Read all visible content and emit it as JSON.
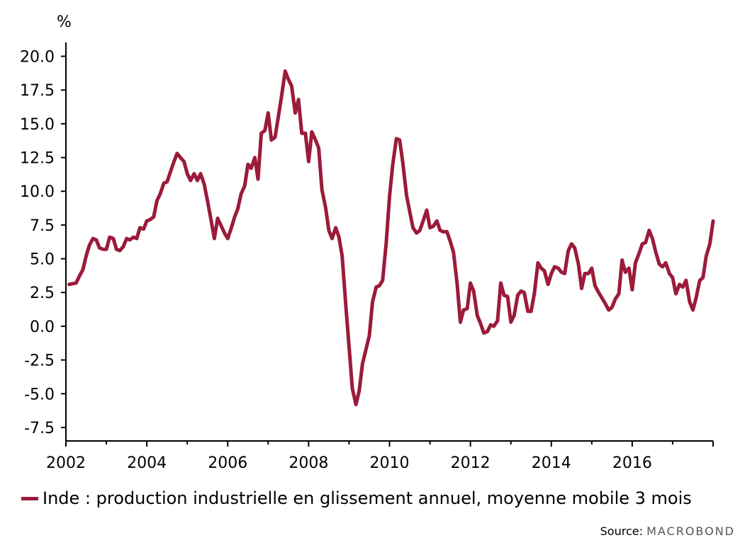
{
  "unit": "%",
  "legend_label": "Inde : production industrielle en glissement annuel, moyenne mobile 3 mois",
  "source_label": "Source:",
  "source_brand": "MACROBOND",
  "colors": {
    "series": "#9b1b3a",
    "axis": "#000000"
  },
  "chart_data": {
    "type": "line",
    "title": "",
    "xlabel": "",
    "ylabel": "%",
    "x_ticks": [
      "2002",
      "2004",
      "2006",
      "2008",
      "2010",
      "2012",
      "2014",
      "2016"
    ],
    "y_ticks": [
      "20.0",
      "17.5",
      "15.0",
      "12.5",
      "10.0",
      "7.5",
      "5.0",
      "2.5",
      "0.0",
      "-2.5",
      "-5.0",
      "-7.5"
    ],
    "xlim": [
      2002.0,
      2018.0
    ],
    "ylim": [
      -8.5,
      20.5
    ],
    "grid": false,
    "legend_position": "bottom",
    "series": [
      {
        "name": "Inde : production industrielle en glissement annuel, moyenne mobile 3 mois",
        "x": [
          2002.08,
          2002.25,
          2002.33,
          2002.42,
          2002.5,
          2002.58,
          2002.67,
          2002.75,
          2002.83,
          2002.92,
          2003.0,
          2003.08,
          2003.17,
          2003.25,
          2003.33,
          2003.42,
          2003.5,
          2003.58,
          2003.67,
          2003.75,
          2003.83,
          2003.92,
          2004.0,
          2004.08,
          2004.17,
          2004.25,
          2004.33,
          2004.42,
          2004.5,
          2004.58,
          2004.67,
          2004.75,
          2004.83,
          2004.92,
          2005.0,
          2005.08,
          2005.17,
          2005.25,
          2005.33,
          2005.42,
          2005.5,
          2005.58,
          2005.67,
          2005.75,
          2005.83,
          2005.92,
          2006.0,
          2006.08,
          2006.17,
          2006.25,
          2006.33,
          2006.42,
          2006.5,
          2006.58,
          2006.67,
          2006.75,
          2006.83,
          2006.92,
          2007.0,
          2007.08,
          2007.17,
          2007.25,
          2007.33,
          2007.42,
          2007.5,
          2007.58,
          2007.67,
          2007.75,
          2007.83,
          2007.92,
          2008.0,
          2008.08,
          2008.17,
          2008.25,
          2008.33,
          2008.42,
          2008.5,
          2008.58,
          2008.67,
          2008.75,
          2008.83,
          2008.92,
          2009.0,
          2009.08,
          2009.17,
          2009.25,
          2009.33,
          2009.42,
          2009.5,
          2009.58,
          2009.67,
          2009.75,
          2009.83,
          2009.92,
          2010.0,
          2010.08,
          2010.17,
          2010.25,
          2010.33,
          2010.42,
          2010.5,
          2010.58,
          2010.67,
          2010.75,
          2010.83,
          2010.92,
          2011.0,
          2011.08,
          2011.17,
          2011.25,
          2011.33,
          2011.42,
          2011.5,
          2011.58,
          2011.67,
          2011.75,
          2011.83,
          2011.92,
          2012.0,
          2012.08,
          2012.17,
          2012.25,
          2012.33,
          2012.42,
          2012.5,
          2012.58,
          2012.67,
          2012.75,
          2012.83,
          2012.92,
          2013.0,
          2013.08,
          2013.17,
          2013.25,
          2013.33,
          2013.42,
          2013.5,
          2013.58,
          2013.67,
          2013.75,
          2013.83,
          2013.92,
          2014.0,
          2014.08,
          2014.17,
          2014.25,
          2014.33,
          2014.42,
          2014.5,
          2014.58,
          2014.67,
          2014.75,
          2014.83,
          2014.92,
          2015.0,
          2015.08,
          2015.17,
          2015.25,
          2015.33,
          2015.42,
          2015.5,
          2015.58,
          2015.67,
          2015.75,
          2015.83,
          2015.92,
          2016.0,
          2016.08,
          2016.17,
          2016.25,
          2016.33,
          2016.42,
          2016.5,
          2016.58,
          2016.67,
          2016.75,
          2016.83,
          2016.92,
          2017.0,
          2017.08,
          2017.17,
          2017.25,
          2017.33,
          2017.42,
          2017.5,
          2017.58,
          2017.67,
          2017.75,
          2017.83,
          2017.92,
          2018.0
        ],
        "values": [
          3.1,
          3.2,
          3.7,
          4.2,
          5.2,
          6.0,
          6.5,
          6.4,
          5.8,
          5.7,
          5.7,
          6.6,
          6.5,
          5.7,
          5.6,
          5.9,
          6.5,
          6.4,
          6.6,
          6.5,
          7.3,
          7.2,
          7.8,
          7.9,
          8.1,
          9.3,
          9.8,
          10.6,
          10.7,
          11.4,
          12.2,
          12.8,
          12.5,
          12.2,
          11.3,
          10.8,
          11.3,
          10.8,
          11.3,
          10.5,
          9.3,
          8.0,
          6.5,
          8.0,
          7.5,
          6.9,
          6.5,
          7.2,
          8.1,
          8.7,
          9.8,
          10.4,
          12.0,
          11.7,
          12.5,
          10.9,
          14.3,
          14.5,
          15.8,
          13.8,
          14.0,
          15.5,
          17.0,
          18.9,
          18.3,
          17.8,
          15.8,
          16.8,
          14.3,
          14.3,
          12.2,
          14.4,
          13.8,
          13.2,
          10.1,
          8.8,
          7.1,
          6.5,
          7.3,
          6.6,
          5.2,
          1.5,
          -1.5,
          -4.6,
          -5.8,
          -4.8,
          -2.8,
          -1.7,
          -0.7,
          1.8,
          2.9,
          3.0,
          3.4,
          6.2,
          9.6,
          12.0,
          13.9,
          13.8,
          12.1,
          9.7,
          8.5,
          7.3,
          6.9,
          7.1,
          7.8,
          8.6,
          7.3,
          7.4,
          7.8,
          7.1,
          7.0,
          7.0,
          6.3,
          5.5,
          3.2,
          0.3,
          1.2,
          1.3,
          3.2,
          2.6,
          0.8,
          0.2,
          -0.5,
          -0.4,
          0.1,
          0.0,
          0.4,
          3.2,
          2.3,
          2.2,
          0.3,
          0.8,
          2.3,
          2.6,
          2.5,
          1.1,
          1.1,
          2.4,
          4.7,
          4.3,
          4.1,
          3.1,
          3.9,
          4.4,
          4.3,
          4.0,
          3.9,
          5.6,
          6.1,
          5.8,
          4.6,
          2.8,
          3.9,
          3.9,
          4.3,
          3.0,
          2.5,
          2.1,
          1.7,
          1.2,
          1.4,
          2.0,
          2.4,
          4.9,
          4.0,
          4.3,
          2.7,
          4.7,
          5.4,
          6.1,
          6.2,
          7.1,
          6.5,
          5.5,
          4.6,
          4.4,
          4.7,
          3.9,
          3.6,
          2.4,
          3.1,
          2.9,
          3.4,
          1.8,
          1.2,
          2.1,
          3.4,
          3.6,
          5.2,
          6.1,
          7.8
        ]
      }
    ]
  }
}
